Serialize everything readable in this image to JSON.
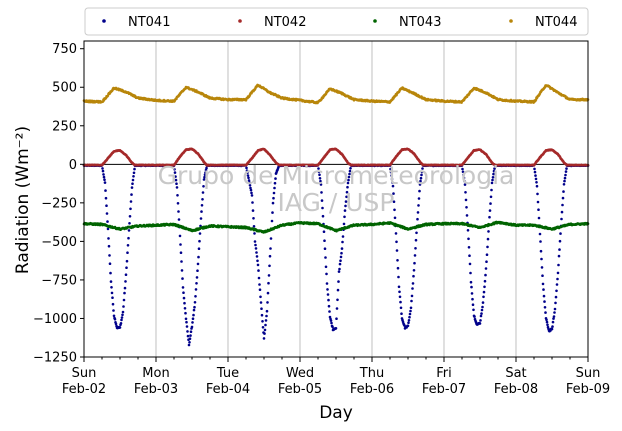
{
  "chart_data": {
    "type": "scatter",
    "xlabel": "Day",
    "ylabel": "Radiation (Wm⁻²)",
    "ylim": [
      -1250,
      800
    ],
    "xlim": [
      "2020-02-02",
      "2020-02-09"
    ],
    "yticks": [
      -1250,
      -1000,
      -750,
      -500,
      -250,
      0,
      250,
      500,
      750
    ],
    "ytick_labels": [
      "−1250",
      "−1000",
      "−750",
      "−500",
      "−250",
      "0",
      "250",
      "500",
      "750"
    ],
    "xticks": [
      {
        "day": "Sun",
        "date": "Feb-02"
      },
      {
        "day": "Mon",
        "date": "Feb-03"
      },
      {
        "day": "Tue",
        "date": "Feb-04"
      },
      {
        "day": "Wed",
        "date": "Feb-05"
      },
      {
        "day": "Thu",
        "date": "Feb-06"
      },
      {
        "day": "Fri",
        "date": "Feb-07"
      },
      {
        "day": "Sat",
        "date": "Feb-08"
      },
      {
        "day": "Sun",
        "date": "Feb-09"
      }
    ],
    "grid": "vertical",
    "zero_line": 0,
    "legend_position": "top",
    "watermark": [
      "Grupo de Micrometeorologia",
      "IAG / USP"
    ],
    "series": [
      {
        "name": "NT041",
        "color": "#00008b",
        "points": [
          [
            "2020-02-02T00:00",
            -8
          ],
          [
            "2020-02-02T06:00",
            -8
          ],
          [
            "2020-02-02T07:00",
            -120
          ],
          [
            "2020-02-02T08:00",
            -420
          ],
          [
            "2020-02-02T09:00",
            -760
          ],
          [
            "2020-02-02T10:00",
            -980
          ],
          [
            "2020-02-02T11:00",
            -1060
          ],
          [
            "2020-02-02T12:00",
            -1060
          ],
          [
            "2020-02-02T13:00",
            -960
          ],
          [
            "2020-02-02T14:00",
            -720
          ],
          [
            "2020-02-02T15:00",
            -430
          ],
          [
            "2020-02-02T16:00",
            -150
          ],
          [
            "2020-02-02T17:00",
            -8
          ],
          [
            "2020-02-02T23:59",
            -8
          ],
          [
            "2020-02-03T06:00",
            -8
          ],
          [
            "2020-02-03T07:00",
            -150
          ],
          [
            "2020-02-03T08:00",
            -460
          ],
          [
            "2020-02-03T09:00",
            -800
          ],
          [
            "2020-02-03T10:00",
            -1000
          ],
          [
            "2020-02-03T11:00",
            -1170
          ],
          [
            "2020-02-03T12:00",
            -1050
          ],
          [
            "2020-02-03T13:00",
            -900
          ],
          [
            "2020-02-03T14:00",
            -650
          ],
          [
            "2020-02-03T15:00",
            -350
          ],
          [
            "2020-02-03T16:00",
            -100
          ],
          [
            "2020-02-03T17:00",
            -8
          ],
          [
            "2020-02-04T06:00",
            -8
          ],
          [
            "2020-02-04T08:00",
            -200
          ],
          [
            "2020-02-04T09:00",
            -500
          ],
          [
            "2020-02-04T10:00",
            -650
          ],
          [
            "2020-02-04T11:00",
            -900
          ],
          [
            "2020-02-04T12:00",
            -1130
          ],
          [
            "2020-02-04T13:00",
            -950
          ],
          [
            "2020-02-04T14:00",
            -600
          ],
          [
            "2020-02-04T15:00",
            -250
          ],
          [
            "2020-02-04T16:00",
            -60
          ],
          [
            "2020-02-04T17:00",
            -8
          ],
          [
            "2020-02-05T06:00",
            -8
          ],
          [
            "2020-02-05T07:00",
            -130
          ],
          [
            "2020-02-05T08:00",
            -440
          ],
          [
            "2020-02-05T09:00",
            -770
          ],
          [
            "2020-02-05T10:00",
            -990
          ],
          [
            "2020-02-05T11:00",
            -1070
          ],
          [
            "2020-02-05T12:00",
            -1060
          ],
          [
            "2020-02-05T13:00",
            -700
          ],
          [
            "2020-02-05T14:00",
            -550
          ],
          [
            "2020-02-05T15:00",
            -300
          ],
          [
            "2020-02-05T16:00",
            -120
          ],
          [
            "2020-02-05T17:00",
            -8
          ],
          [
            "2020-02-06T06:00",
            -8
          ],
          [
            "2020-02-06T07:00",
            -140
          ],
          [
            "2020-02-06T08:00",
            -450
          ],
          [
            "2020-02-06T09:00",
            -790
          ],
          [
            "2020-02-06T10:00",
            -1000
          ],
          [
            "2020-02-06T11:00",
            -1060
          ],
          [
            "2020-02-06T12:00",
            -1050
          ],
          [
            "2020-02-06T13:00",
            -930
          ],
          [
            "2020-02-06T14:00",
            -690
          ],
          [
            "2020-02-06T15:00",
            -400
          ],
          [
            "2020-02-06T16:00",
            -130
          ],
          [
            "2020-02-06T17:00",
            -8
          ],
          [
            "2020-02-07T06:00",
            -8
          ],
          [
            "2020-02-07T07:00",
            -130
          ],
          [
            "2020-02-07T08:00",
            -430
          ],
          [
            "2020-02-07T09:00",
            -760
          ],
          [
            "2020-02-07T10:00",
            -980
          ],
          [
            "2020-02-07T11:00",
            -1040
          ],
          [
            "2020-02-07T12:00",
            -1030
          ],
          [
            "2020-02-07T13:00",
            -900
          ],
          [
            "2020-02-07T14:00",
            -680
          ],
          [
            "2020-02-07T15:00",
            -390
          ],
          [
            "2020-02-07T16:00",
            -120
          ],
          [
            "2020-02-07T17:00",
            -8
          ],
          [
            "2020-02-08T06:00",
            -8
          ],
          [
            "2020-02-08T07:00",
            -140
          ],
          [
            "2020-02-08T08:00",
            -450
          ],
          [
            "2020-02-08T09:00",
            -780
          ],
          [
            "2020-02-08T10:00",
            -1000
          ],
          [
            "2020-02-08T11:00",
            -1080
          ],
          [
            "2020-02-08T12:00",
            -1070
          ],
          [
            "2020-02-08T13:00",
            -940
          ],
          [
            "2020-02-08T14:00",
            -700
          ],
          [
            "2020-02-08T15:00",
            -400
          ],
          [
            "2020-02-08T16:00",
            -130
          ],
          [
            "2020-02-08T17:00",
            -8
          ],
          [
            "2020-02-09T00:00",
            -8
          ]
        ]
      },
      {
        "name": "NT042",
        "color": "#a52a2a",
        "points": [
          [
            "2020-02-02T00:00",
            -5
          ],
          [
            "2020-02-02T06:00",
            -5
          ],
          [
            "2020-02-02T08:00",
            40
          ],
          [
            "2020-02-02T10:00",
            85
          ],
          [
            "2020-02-02T12:00",
            90
          ],
          [
            "2020-02-02T14:00",
            60
          ],
          [
            "2020-02-02T16:00",
            10
          ],
          [
            "2020-02-02T17:00",
            -5
          ],
          [
            "2020-02-03T06:00",
            -5
          ],
          [
            "2020-02-03T08:00",
            50
          ],
          [
            "2020-02-03T10:00",
            95
          ],
          [
            "2020-02-03T12:00",
            100
          ],
          [
            "2020-02-03T14:00",
            70
          ],
          [
            "2020-02-03T16:00",
            15
          ],
          [
            "2020-02-03T17:00",
            -5
          ],
          [
            "2020-02-04T06:00",
            -5
          ],
          [
            "2020-02-04T08:00",
            40
          ],
          [
            "2020-02-04T10:00",
            90
          ],
          [
            "2020-02-04T12:00",
            100
          ],
          [
            "2020-02-04T14:00",
            60
          ],
          [
            "2020-02-04T16:00",
            10
          ],
          [
            "2020-02-04T17:00",
            -5
          ],
          [
            "2020-02-05T06:00",
            -5
          ],
          [
            "2020-02-05T08:00",
            45
          ],
          [
            "2020-02-05T10:00",
            95
          ],
          [
            "2020-02-05T12:00",
            100
          ],
          [
            "2020-02-05T14:00",
            65
          ],
          [
            "2020-02-05T16:00",
            10
          ],
          [
            "2020-02-05T17:00",
            -5
          ],
          [
            "2020-02-06T06:00",
            -5
          ],
          [
            "2020-02-06T08:00",
            50
          ],
          [
            "2020-02-06T10:00",
            95
          ],
          [
            "2020-02-06T12:00",
            100
          ],
          [
            "2020-02-06T14:00",
            70
          ],
          [
            "2020-02-06T16:00",
            15
          ],
          [
            "2020-02-06T17:00",
            -5
          ],
          [
            "2020-02-07T06:00",
            -5
          ],
          [
            "2020-02-07T08:00",
            45
          ],
          [
            "2020-02-07T10:00",
            90
          ],
          [
            "2020-02-07T12:00",
            95
          ],
          [
            "2020-02-07T14:00",
            65
          ],
          [
            "2020-02-07T16:00",
            10
          ],
          [
            "2020-02-07T17:00",
            -5
          ],
          [
            "2020-02-08T06:00",
            -5
          ],
          [
            "2020-02-08T08:00",
            45
          ],
          [
            "2020-02-08T10:00",
            90
          ],
          [
            "2020-02-08T12:00",
            95
          ],
          [
            "2020-02-08T14:00",
            65
          ],
          [
            "2020-02-08T16:00",
            10
          ],
          [
            "2020-02-08T17:00",
            -5
          ],
          [
            "2020-02-09T00:00",
            -5
          ]
        ]
      },
      {
        "name": "NT043",
        "color": "#006400",
        "points": [
          [
            "2020-02-02T00:00",
            -385
          ],
          [
            "2020-02-02T06:00",
            -390
          ],
          [
            "2020-02-02T12:00",
            -420
          ],
          [
            "2020-02-02T18:00",
            -400
          ],
          [
            "2020-02-03T00:00",
            -395
          ],
          [
            "2020-02-03T06:00",
            -390
          ],
          [
            "2020-02-03T12:00",
            -430
          ],
          [
            "2020-02-03T18:00",
            -400
          ],
          [
            "2020-02-04T00:00",
            -405
          ],
          [
            "2020-02-04T06:00",
            -410
          ],
          [
            "2020-02-04T12:00",
            -440
          ],
          [
            "2020-02-04T18:00",
            -395
          ],
          [
            "2020-02-05T00:00",
            -380
          ],
          [
            "2020-02-05T06:00",
            -385
          ],
          [
            "2020-02-05T12:00",
            -430
          ],
          [
            "2020-02-05T18:00",
            -395
          ],
          [
            "2020-02-06T00:00",
            -390
          ],
          [
            "2020-02-06T06:00",
            -380
          ],
          [
            "2020-02-06T12:00",
            -420
          ],
          [
            "2020-02-06T18:00",
            -390
          ],
          [
            "2020-02-07T00:00",
            -385
          ],
          [
            "2020-02-07T06:00",
            -385
          ],
          [
            "2020-02-07T12:00",
            -410
          ],
          [
            "2020-02-07T18:00",
            -375
          ],
          [
            "2020-02-08T00:00",
            -395
          ],
          [
            "2020-02-08T06:00",
            -395
          ],
          [
            "2020-02-08T12:00",
            -420
          ],
          [
            "2020-02-08T18:00",
            -390
          ],
          [
            "2020-02-09T00:00",
            -385
          ]
        ]
      },
      {
        "name": "NT044",
        "color": "#b8860b",
        "points": [
          [
            "2020-02-02T00:00",
            410
          ],
          [
            "2020-02-02T06:00",
            405
          ],
          [
            "2020-02-02T10:00",
            495
          ],
          [
            "2020-02-02T14:00",
            470
          ],
          [
            "2020-02-02T18:00",
            430
          ],
          [
            "2020-02-03T00:00",
            415
          ],
          [
            "2020-02-03T06:00",
            410
          ],
          [
            "2020-02-03T10:00",
            500
          ],
          [
            "2020-02-03T14:00",
            470
          ],
          [
            "2020-02-03T18:00",
            430
          ],
          [
            "2020-02-04T00:00",
            420
          ],
          [
            "2020-02-04T06:00",
            420
          ],
          [
            "2020-02-04T10:00",
            515
          ],
          [
            "2020-02-04T14:00",
            465
          ],
          [
            "2020-02-04T18:00",
            430
          ],
          [
            "2020-02-05T00:00",
            415
          ],
          [
            "2020-02-05T06:00",
            400
          ],
          [
            "2020-02-05T10:00",
            490
          ],
          [
            "2020-02-05T14:00",
            460
          ],
          [
            "2020-02-05T18:00",
            420
          ],
          [
            "2020-02-06T00:00",
            410
          ],
          [
            "2020-02-06T06:00",
            405
          ],
          [
            "2020-02-06T10:00",
            495
          ],
          [
            "2020-02-06T14:00",
            460
          ],
          [
            "2020-02-06T18:00",
            420
          ],
          [
            "2020-02-07T00:00",
            410
          ],
          [
            "2020-02-07T06:00",
            405
          ],
          [
            "2020-02-07T10:00",
            495
          ],
          [
            "2020-02-07T14:00",
            465
          ],
          [
            "2020-02-07T18:00",
            420
          ],
          [
            "2020-02-08T00:00",
            410
          ],
          [
            "2020-02-08T06:00",
            405
          ],
          [
            "2020-02-08T10:00",
            515
          ],
          [
            "2020-02-08T14:00",
            465
          ],
          [
            "2020-02-08T18:00",
            420
          ],
          [
            "2020-02-09T00:00",
            420
          ]
        ]
      }
    ]
  }
}
